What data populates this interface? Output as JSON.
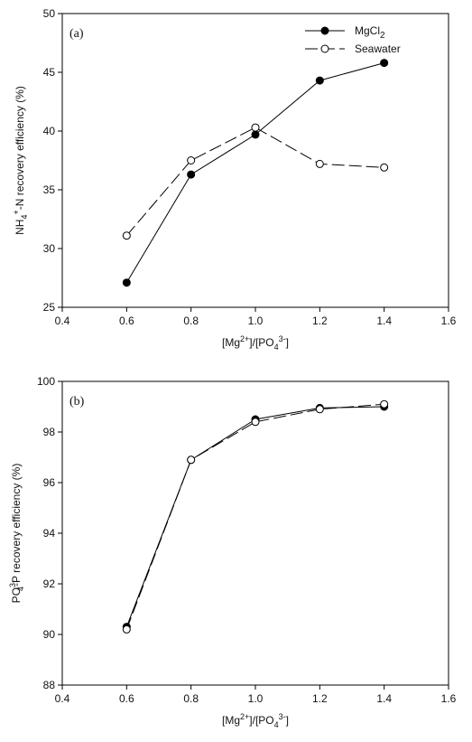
{
  "chart_data": [
    {
      "type": "line",
      "panel_label": "(a)",
      "xlabel": {
        "base1": "[Mg",
        "sup1": "2+",
        "base2": "]/[PO",
        "sub2": "4",
        "sup2": "3-",
        "base3": "]"
      },
      "ylabel": {
        "base1": "NH",
        "sub1": "4",
        "sup1": "+",
        "base2": "-N recovery efficiency (%)"
      },
      "xlim": [
        0.4,
        1.6
      ],
      "ylim": [
        25,
        50
      ],
      "xticks": [
        "0.4",
        "0.6",
        "0.8",
        "1.0",
        "1.2",
        "1.4",
        "1.6"
      ],
      "yticks": [
        "25",
        "30",
        "35",
        "40",
        "45",
        "50"
      ],
      "legend_position": "top-right",
      "series": [
        {
          "name": {
            "base": "MgCl",
            "sub": "2"
          },
          "marker": "filled",
          "dash": "solid",
          "x": [
            0.6,
            0.8,
            1.0,
            1.2,
            1.4
          ],
          "y": [
            27.1,
            36.3,
            39.7,
            44.3,
            45.8
          ]
        },
        {
          "name": {
            "base": "Seawater",
            "sub": ""
          },
          "marker": "open",
          "dash": "long-dash",
          "x": [
            0.6,
            0.8,
            1.0,
            1.2,
            1.4
          ],
          "y": [
            31.1,
            37.5,
            40.3,
            37.2,
            36.9
          ]
        }
      ]
    },
    {
      "type": "line",
      "panel_label": "(b)",
      "xlabel": {
        "base1": "[Mg",
        "sup1": "2+",
        "base2": "]/[PO",
        "sub2": "4",
        "sup2": "3-",
        "base3": "]"
      },
      "ylabel": {
        "base1": "PO",
        "sup1": "3-",
        "sub1": "4",
        "base2": "-P recovery efficiency (%)"
      },
      "xlim": [
        0.4,
        1.6
      ],
      "ylim": [
        88,
        100
      ],
      "xticks": [
        "0.4",
        "0.6",
        "0.8",
        "1.0",
        "1.2",
        "1.4",
        "1.6"
      ],
      "yticks": [
        "88",
        "90",
        "92",
        "94",
        "96",
        "98",
        "100"
      ],
      "series": [
        {
          "marker": "filled",
          "dash": "solid",
          "x": [
            0.6,
            0.8,
            1.0,
            1.2,
            1.4
          ],
          "y": [
            90.3,
            96.9,
            98.5,
            98.95,
            99.0
          ]
        },
        {
          "marker": "open",
          "dash": "long-dash",
          "x": [
            0.6,
            0.8,
            1.0,
            1.2,
            1.4
          ],
          "y": [
            90.2,
            96.9,
            98.4,
            98.9,
            99.1
          ]
        }
      ]
    }
  ]
}
